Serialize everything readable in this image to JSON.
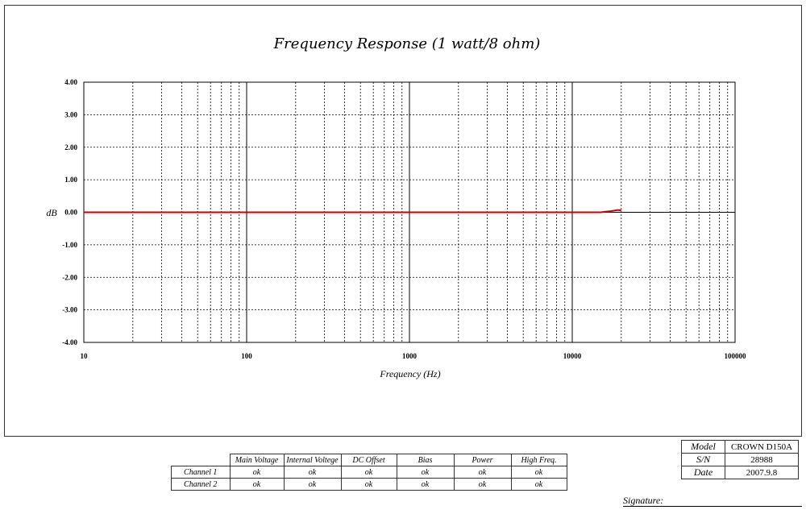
{
  "chart_data": {
    "type": "line",
    "title": "Frequency Response (1 watt/8 ohm)",
    "xlabel": "Frequency (Hz)",
    "ylabel": "dB",
    "xscale": "log",
    "xlim": [
      10,
      100000
    ],
    "ylim": [
      -4,
      4
    ],
    "grid": true,
    "x_ticks": [
      10,
      100,
      1000,
      10000,
      100000
    ],
    "x_tick_labels": [
      "10",
      "100",
      "1000",
      "10000",
      "100000"
    ],
    "y_ticks": [
      4,
      3,
      2,
      1,
      0,
      -1,
      -2,
      -3,
      -4
    ],
    "y_tick_labels": [
      "4.00",
      "3.00",
      "2.00",
      "1.00",
      "0.00",
      "-1.00",
      "-2.00",
      "-3.00",
      "-4.00"
    ],
    "series": [
      {
        "color": "#cc0000",
        "x": [
          10,
          100,
          1000,
          10000,
          15000,
          16000,
          17000,
          18000,
          19000,
          20000
        ],
        "y": [
          0,
          0,
          0,
          0,
          0.0,
          0.02,
          0.03,
          0.05,
          0.07,
          0.06
        ]
      }
    ],
    "reference_line": {
      "y": 0,
      "color": "#000000"
    }
  },
  "status_table": {
    "headers": [
      "Main Voltage",
      "Internal Voltege",
      "DC Offset",
      "Bias",
      "Power",
      "High Freq."
    ],
    "rows": [
      {
        "label": "Channel 1",
        "values": [
          "ok",
          "ok",
          "ok",
          "ok",
          "ok",
          "ok"
        ]
      },
      {
        "label": "Channel 2",
        "values": [
          "ok",
          "ok",
          "ok",
          "ok",
          "ok",
          "ok"
        ]
      }
    ]
  },
  "info": {
    "model_label": "Model",
    "model": "CROWN D150A",
    "sn_label": "S/N",
    "sn": "28988",
    "date_label": "Date",
    "date": "2007.9.8"
  },
  "signature_label": "Signature:"
}
